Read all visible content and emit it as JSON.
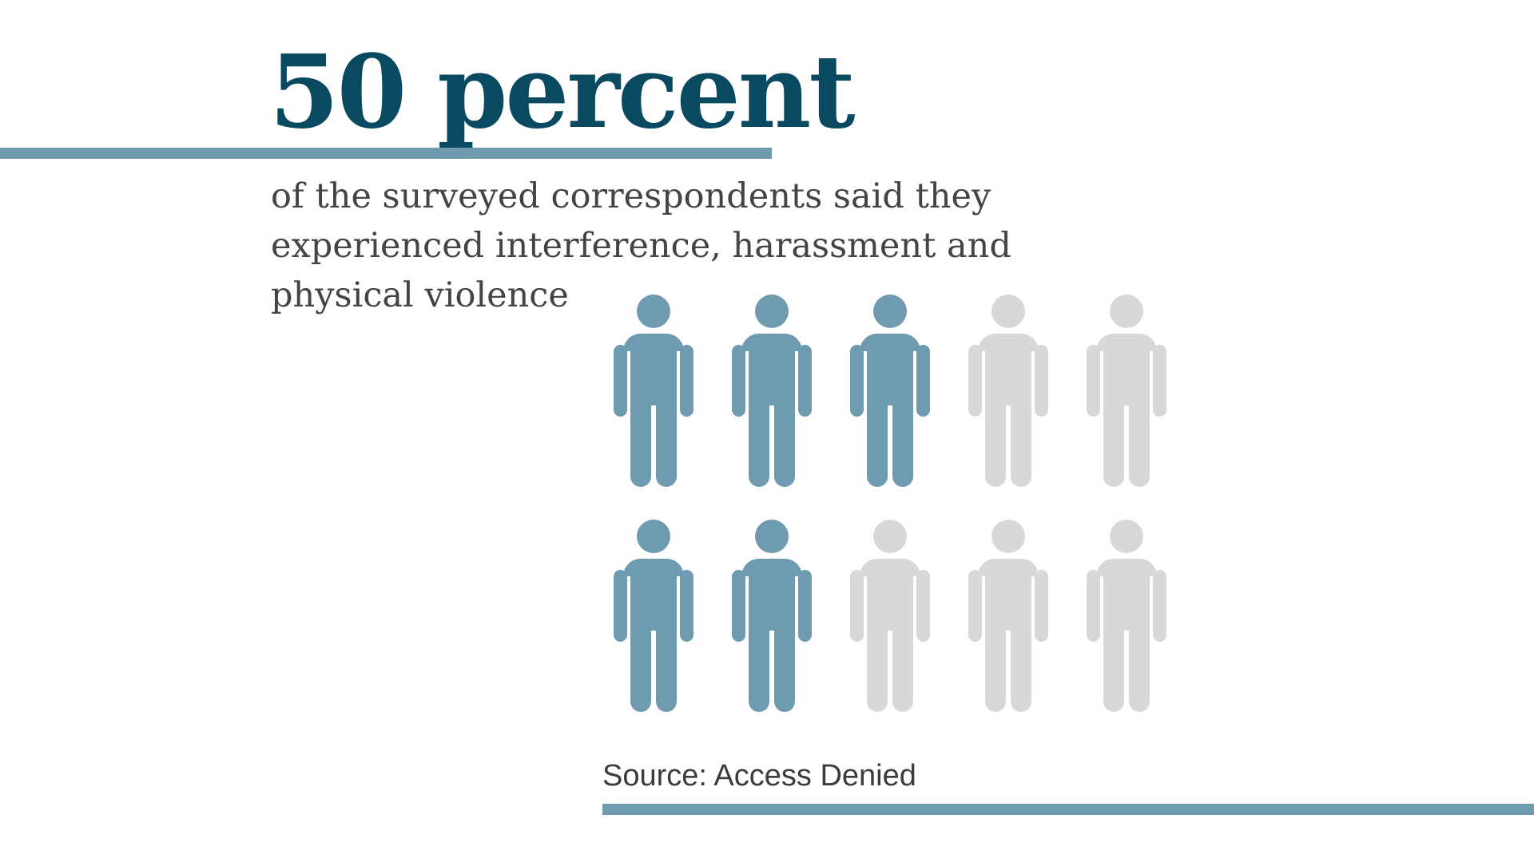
{
  "headline": "50 percent",
  "description": "of the surveyed correspondents said they experienced interference, harassment and physical violence",
  "source": "Source: Access Denied",
  "pictogram": {
    "icon": "person-icon",
    "total": 10,
    "highlighted_slots": [
      1,
      2,
      3,
      6,
      7
    ],
    "highlight_color": "#6f9bb0",
    "muted_color": "#d8d8d8"
  },
  "colors": {
    "headline": "#0a4a60",
    "text": "#444444",
    "rule": "#6f9bb0",
    "background": "#ffffff"
  }
}
